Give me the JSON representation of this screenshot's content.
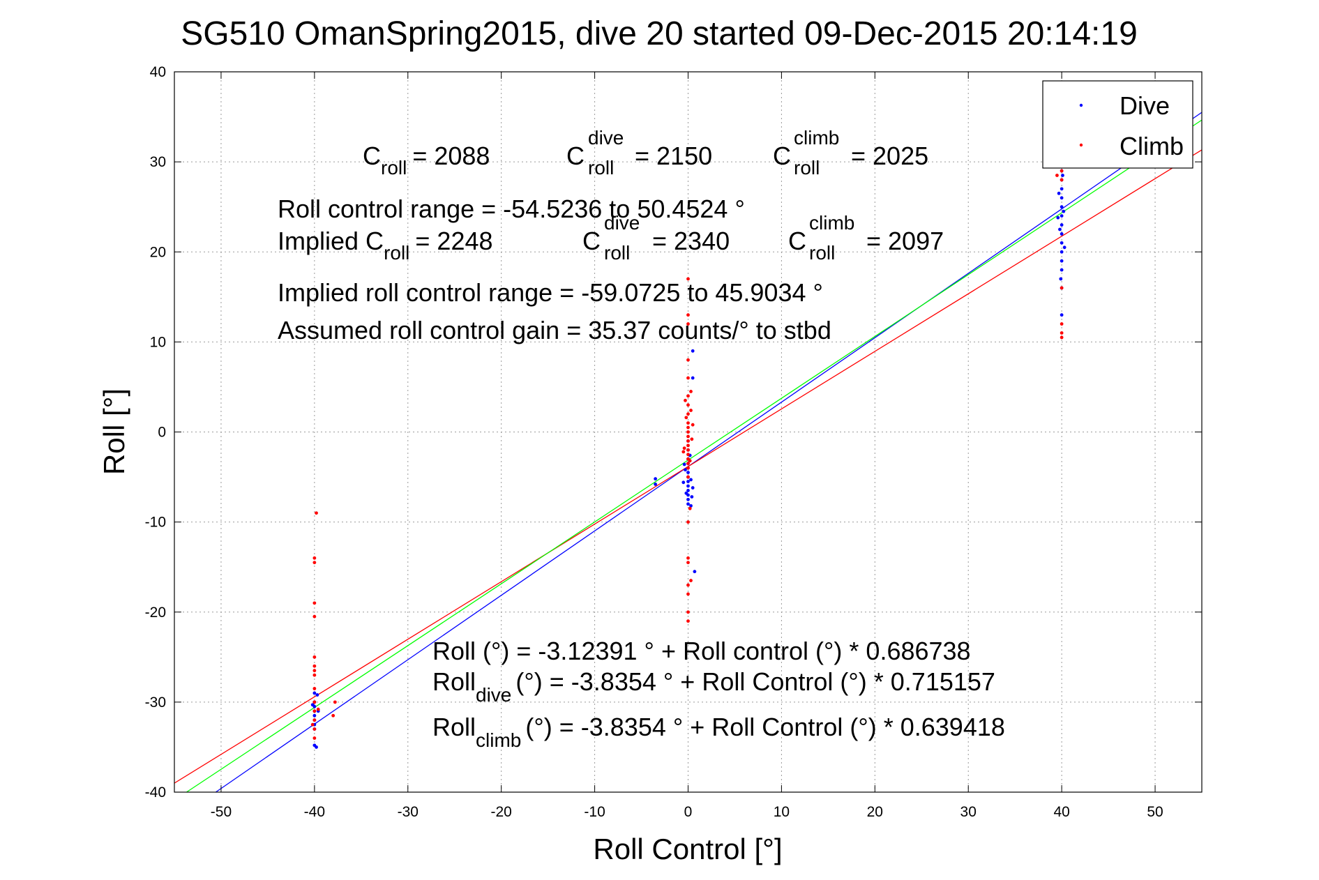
{
  "chart_data": {
    "type": "scatter",
    "title": "SG510 OmanSpring2015, dive 20 started 09-Dec-2015 20:14:19",
    "xlabel": "Roll Control [°]",
    "ylabel": "Roll [°]",
    "xlim": [
      -55,
      55
    ],
    "ylim": [
      -40,
      40
    ],
    "xticks": [
      -50,
      -40,
      -30,
      -20,
      -10,
      0,
      10,
      20,
      30,
      40,
      50
    ],
    "yticks": [
      -40,
      -30,
      -20,
      -10,
      0,
      10,
      20,
      30,
      40
    ],
    "grid": true,
    "legend_position": "top-right",
    "legend": [
      {
        "name": "Dive",
        "color": "#0000ff"
      },
      {
        "name": "Climb",
        "color": "#ff0000"
      }
    ],
    "series": [
      {
        "name": "Dive",
        "color": "#0000ff",
        "points": [
          [
            -40,
            -29
          ],
          [
            -40,
            -30
          ],
          [
            -40,
            -30.5
          ],
          [
            -40,
            -31
          ],
          [
            -40,
            -31.5
          ],
          [
            -40,
            -32
          ],
          [
            -40,
            -32.5
          ],
          [
            -40,
            -33
          ],
          [
            -40,
            -34.8
          ],
          [
            -39.8,
            -35
          ],
          [
            -39.6,
            -31
          ],
          [
            -40.2,
            -30.3
          ],
          [
            -39.7,
            -29.2
          ],
          [
            -3.5,
            -5.2
          ],
          [
            -3.5,
            -5.8
          ],
          [
            0,
            -1
          ],
          [
            0,
            -2
          ],
          [
            0,
            -3
          ],
          [
            0,
            -3.5
          ],
          [
            0,
            -4
          ],
          [
            0,
            -4.5
          ],
          [
            0,
            -5
          ],
          [
            0,
            -5.5
          ],
          [
            0,
            -6
          ],
          [
            0,
            -6.5
          ],
          [
            0,
            -7
          ],
          [
            0,
            -7.5
          ],
          [
            0,
            -8
          ],
          [
            -0.3,
            -4.2
          ],
          [
            0.3,
            -5.3
          ],
          [
            -0.2,
            -6.8
          ],
          [
            0.4,
            -7.2
          ],
          [
            -0.4,
            -3.6
          ],
          [
            0.2,
            -2.6
          ],
          [
            0.5,
            -6.2
          ],
          [
            -0.5,
            -5.6
          ],
          [
            0.3,
            -8.2
          ],
          [
            0.5,
            6
          ],
          [
            0.5,
            9
          ],
          [
            0.7,
            -15.5
          ],
          [
            40,
            18
          ],
          [
            40,
            19
          ],
          [
            40,
            20
          ],
          [
            40,
            21
          ],
          [
            40,
            22
          ],
          [
            40,
            23
          ],
          [
            40,
            24
          ],
          [
            40,
            25
          ],
          [
            40,
            26
          ],
          [
            40,
            27
          ],
          [
            40,
            28
          ],
          [
            40,
            29
          ],
          [
            40,
            30
          ],
          [
            40,
            31
          ],
          [
            39.8,
            22.5
          ],
          [
            40.2,
            24.5
          ],
          [
            39.7,
            26.5
          ],
          [
            40.3,
            20.5
          ],
          [
            39.6,
            23.8
          ],
          [
            40.1,
            28.5
          ],
          [
            39.9,
            17
          ],
          [
            40,
            16
          ],
          [
            40,
            13
          ]
        ]
      },
      {
        "name": "Climb",
        "color": "#ff0000",
        "points": [
          [
            -39.8,
            -9
          ],
          [
            -40,
            -14
          ],
          [
            -40,
            -14.5
          ],
          [
            -40,
            -19
          ],
          [
            -40,
            -20.5
          ],
          [
            -40,
            -25
          ],
          [
            -40,
            -26
          ],
          [
            -40,
            -26.5
          ],
          [
            -40,
            -27
          ],
          [
            -40,
            -28.5
          ],
          [
            -40,
            -30
          ],
          [
            -40,
            -31
          ],
          [
            -40,
            -32
          ],
          [
            -40,
            -33
          ],
          [
            -40,
            -34
          ],
          [
            -39.6,
            -30.8
          ],
          [
            -40.2,
            -32.5
          ],
          [
            -38,
            -31.5
          ],
          [
            -37.8,
            -30
          ],
          [
            0,
            17
          ],
          [
            0,
            13
          ],
          [
            0,
            12
          ],
          [
            0,
            8
          ],
          [
            0,
            6
          ],
          [
            0,
            4
          ],
          [
            0,
            3
          ],
          [
            0,
            2
          ],
          [
            0,
            1
          ],
          [
            0,
            0.5
          ],
          [
            0,
            0
          ],
          [
            0,
            -0.5
          ],
          [
            0,
            -1
          ],
          [
            0,
            -1.5
          ],
          [
            0,
            -2
          ],
          [
            0,
            -2.5
          ],
          [
            0,
            -3
          ],
          [
            0,
            -3.5
          ],
          [
            0,
            -4
          ],
          [
            0,
            -5
          ],
          [
            -0.3,
            3.5
          ],
          [
            0.3,
            2.4
          ],
          [
            -0.2,
            1.6
          ],
          [
            0.4,
            -0.8
          ],
          [
            -0.4,
            -1.8
          ],
          [
            0.2,
            -3.2
          ],
          [
            0.5,
            0.8
          ],
          [
            -0.5,
            -2.2
          ],
          [
            0.3,
            4.5
          ],
          [
            0,
            -10
          ],
          [
            0,
            -14
          ],
          [
            0,
            -14.5
          ],
          [
            0,
            -17
          ],
          [
            0,
            -18
          ],
          [
            0,
            -20
          ],
          [
            0,
            -21
          ],
          [
            0.3,
            -16.5
          ],
          [
            0.2,
            -8.5
          ],
          [
            40,
            29
          ],
          [
            40,
            28
          ],
          [
            40,
            16
          ],
          [
            40,
            12
          ],
          [
            40,
            11
          ],
          [
            40,
            10.5
          ],
          [
            39.5,
            28.5
          ],
          [
            39.2,
            29.5
          ]
        ]
      }
    ],
    "fit_lines": [
      {
        "name": "Dive fit",
        "color": "#0000ff",
        "intercept": -3.8354,
        "slope": 0.715157
      },
      {
        "name": "Climb fit",
        "color": "#ff0000",
        "intercept": -3.8354,
        "slope": 0.639418
      },
      {
        "name": "Overall fit",
        "color": "#00ff00",
        "intercept": -3.12391,
        "slope": 0.686738
      }
    ],
    "annotations": {
      "c_roll_line": {
        "c": "C",
        "roll_sub": "roll",
        "c_roll_val": "= 2088",
        "dive_sup": "dive",
        "c_dive_val": "= 2150",
        "climb_sup": "climb",
        "c_climb_val": "= 2025"
      },
      "roll_control_range": "Roll control range = -54.5236 to 50.4524 °",
      "implied_line": {
        "prefix": "Implied C",
        "roll_sub": "roll",
        "c_roll_val": "= 2248",
        "c": "C",
        "dive_sup": "dive",
        "c_dive_val": "= 2340",
        "climb_sup": "climb",
        "c_climb_val": "= 2097"
      },
      "implied_range": "Implied roll control range = -59.0725 to 45.9034 °",
      "gain": "Assumed roll control gain = 35.37 counts/° to stbd",
      "eq_overall": "Roll (°) = -3.12391 ° + Roll control (°) * 0.686738",
      "eq_dive": {
        "roll": "Roll",
        "sub": "dive",
        "rest": "(°) = -3.8354 ° + Roll Control (°) * 0.715157"
      },
      "eq_climb": {
        "roll": "Roll",
        "sub": "climb",
        "rest": "(°) = -3.8354 ° + Roll Control (°) * 0.639418"
      }
    }
  }
}
